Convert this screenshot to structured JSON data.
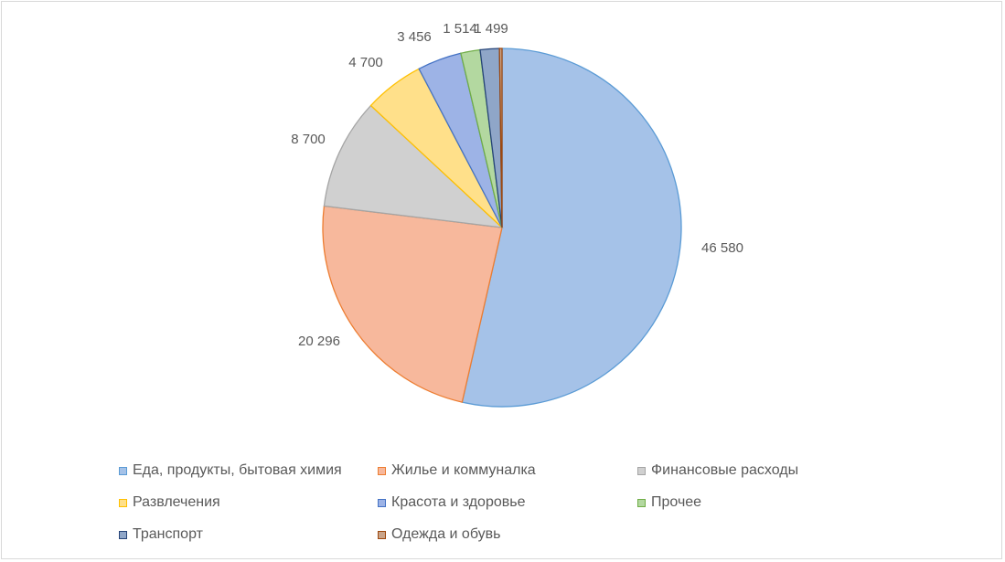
{
  "chart_data": {
    "type": "pie",
    "title": "",
    "slices": [
      {
        "label": "Еда, продукты, бытовая химия",
        "value": 46580,
        "value_label": "46 580",
        "fill": "#a5c2e8",
        "stroke": "#5b9bd5"
      },
      {
        "label": "Жилье и коммуналка",
        "value": 20296,
        "value_label": "20 296",
        "fill": "#f7b89c",
        "stroke": "#ed7d31"
      },
      {
        "label": "Финансовые расходы",
        "value": 8700,
        "value_label": "8 700",
        "fill": "#d0d0d0",
        "stroke": "#a5a5a5"
      },
      {
        "label": "Развлечения",
        "value": 4700,
        "value_label": "4 700",
        "fill": "#ffe08a",
        "stroke": "#ffc000"
      },
      {
        "label": "Красота и здоровье",
        "value": 3456,
        "value_label": "3 456",
        "fill": "#9db3e6",
        "stroke": "#4472c4"
      },
      {
        "label": "Прочее",
        "value": 1514,
        "value_label": "1 514",
        "fill": "#b3d8a0",
        "stroke": "#70ad47"
      },
      {
        "label": "Транспорт",
        "value": 1499,
        "value_label": "1 499",
        "fill": "#8fa6c8",
        "stroke": "#264478"
      },
      {
        "label": "Одежда и обувь",
        "value": 200,
        "value_label": "",
        "fill": "#c9a48a",
        "stroke": "#9e480e"
      }
    ],
    "legend_position": "bottom"
  }
}
